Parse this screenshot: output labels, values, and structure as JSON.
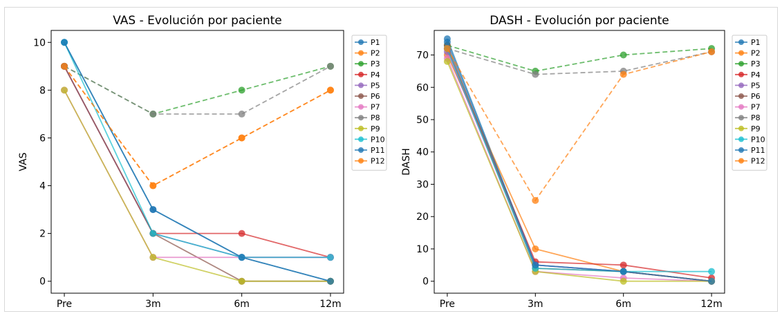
{
  "chart_data": [
    {
      "type": "line",
      "title": "VAS - Evolución por paciente",
      "xlabel": "",
      "ylabel": "VAS",
      "categories": [
        "Pre",
        "3m",
        "6m",
        "12m"
      ],
      "ylim": [
        -0.5,
        10.5
      ],
      "yticks": [
        0,
        2,
        4,
        6,
        8,
        10
      ],
      "grid": false,
      "legend": "outside-right",
      "series": [
        {
          "name": "P1",
          "color": "#1f77b4",
          "style": "solid",
          "values": [
            10,
            3,
            1,
            0
          ]
        },
        {
          "name": "P2",
          "color": "#ff7f0e",
          "style": "dashed",
          "values": [
            9,
            4,
            6,
            8
          ]
        },
        {
          "name": "P3",
          "color": "#2ca02c",
          "style": "dashed",
          "values": [
            9,
            7,
            8,
            9
          ]
        },
        {
          "name": "P4",
          "color": "#d62728",
          "style": "solid",
          "values": [
            9,
            2,
            2,
            1
          ]
        },
        {
          "name": "P5",
          "color": "#9467bd",
          "style": "solid",
          "values": [
            9,
            2,
            1,
            1
          ]
        },
        {
          "name": "P6",
          "color": "#8c564b",
          "style": "solid",
          "values": [
            9,
            2,
            0,
            0
          ]
        },
        {
          "name": "P7",
          "color": "#e377c2",
          "style": "solid",
          "values": [
            8,
            1,
            1,
            1
          ]
        },
        {
          "name": "P8",
          "color": "#7f7f7f",
          "style": "dashed",
          "values": [
            9,
            7,
            7,
            9
          ]
        },
        {
          "name": "P9",
          "color": "#bcbd22",
          "style": "solid",
          "values": [
            8,
            1,
            0,
            0
          ]
        },
        {
          "name": "P10",
          "color": "#17becf",
          "style": "solid",
          "values": [
            10,
            2,
            1,
            1
          ]
        },
        {
          "name": "P11",
          "color": "#1f77b4",
          "style": "solid",
          "values": [
            10,
            3,
            1,
            0
          ]
        },
        {
          "name": "P12",
          "color": "#ff7f0e",
          "style": "dashed",
          "values": [
            9,
            4,
            6,
            8
          ]
        }
      ]
    },
    {
      "type": "line",
      "title": "DASH - Evolución por paciente",
      "xlabel": "",
      "ylabel": "DASH",
      "categories": [
        "Pre",
        "3m",
        "6m",
        "12m"
      ],
      "ylim": [
        -3.7,
        77.6
      ],
      "yticks": [
        0,
        10,
        20,
        30,
        40,
        50,
        60,
        70
      ],
      "grid": false,
      "legend": "outside-right",
      "series": [
        {
          "name": "P1",
          "color": "#1f77b4",
          "style": "solid",
          "values": [
            75,
            5,
            3,
            0
          ]
        },
        {
          "name": "P2",
          "color": "#ff7f0e",
          "style": "solid",
          "values": [
            70,
            10,
            3,
            0
          ]
        },
        {
          "name": "P3",
          "color": "#2ca02c",
          "style": "dashed",
          "values": [
            73,
            65,
            70,
            72
          ]
        },
        {
          "name": "P4",
          "color": "#d62728",
          "style": "solid",
          "values": [
            72,
            6,
            5,
            1
          ]
        },
        {
          "name": "P5",
          "color": "#9467bd",
          "style": "solid",
          "values": [
            71,
            5,
            3,
            0
          ]
        },
        {
          "name": "P6",
          "color": "#8c564b",
          "style": "solid",
          "values": [
            73,
            4,
            3,
            0
          ]
        },
        {
          "name": "P7",
          "color": "#e377c2",
          "style": "solid",
          "values": [
            69,
            3,
            1,
            0
          ]
        },
        {
          "name": "P8",
          "color": "#7f7f7f",
          "style": "dashed",
          "values": [
            72,
            64,
            65,
            71
          ]
        },
        {
          "name": "P9",
          "color": "#bcbd22",
          "style": "solid",
          "values": [
            68,
            3,
            0,
            0
          ]
        },
        {
          "name": "P10",
          "color": "#17becf",
          "style": "solid",
          "values": [
            72,
            4,
            3,
            3
          ]
        },
        {
          "name": "P11",
          "color": "#1f77b4",
          "style": "solid",
          "values": [
            74,
            5,
            3,
            0
          ]
        },
        {
          "name": "P12",
          "color": "#ff7f0e",
          "style": "dashed",
          "values": [
            72,
            25,
            64,
            71
          ]
        }
      ]
    }
  ]
}
